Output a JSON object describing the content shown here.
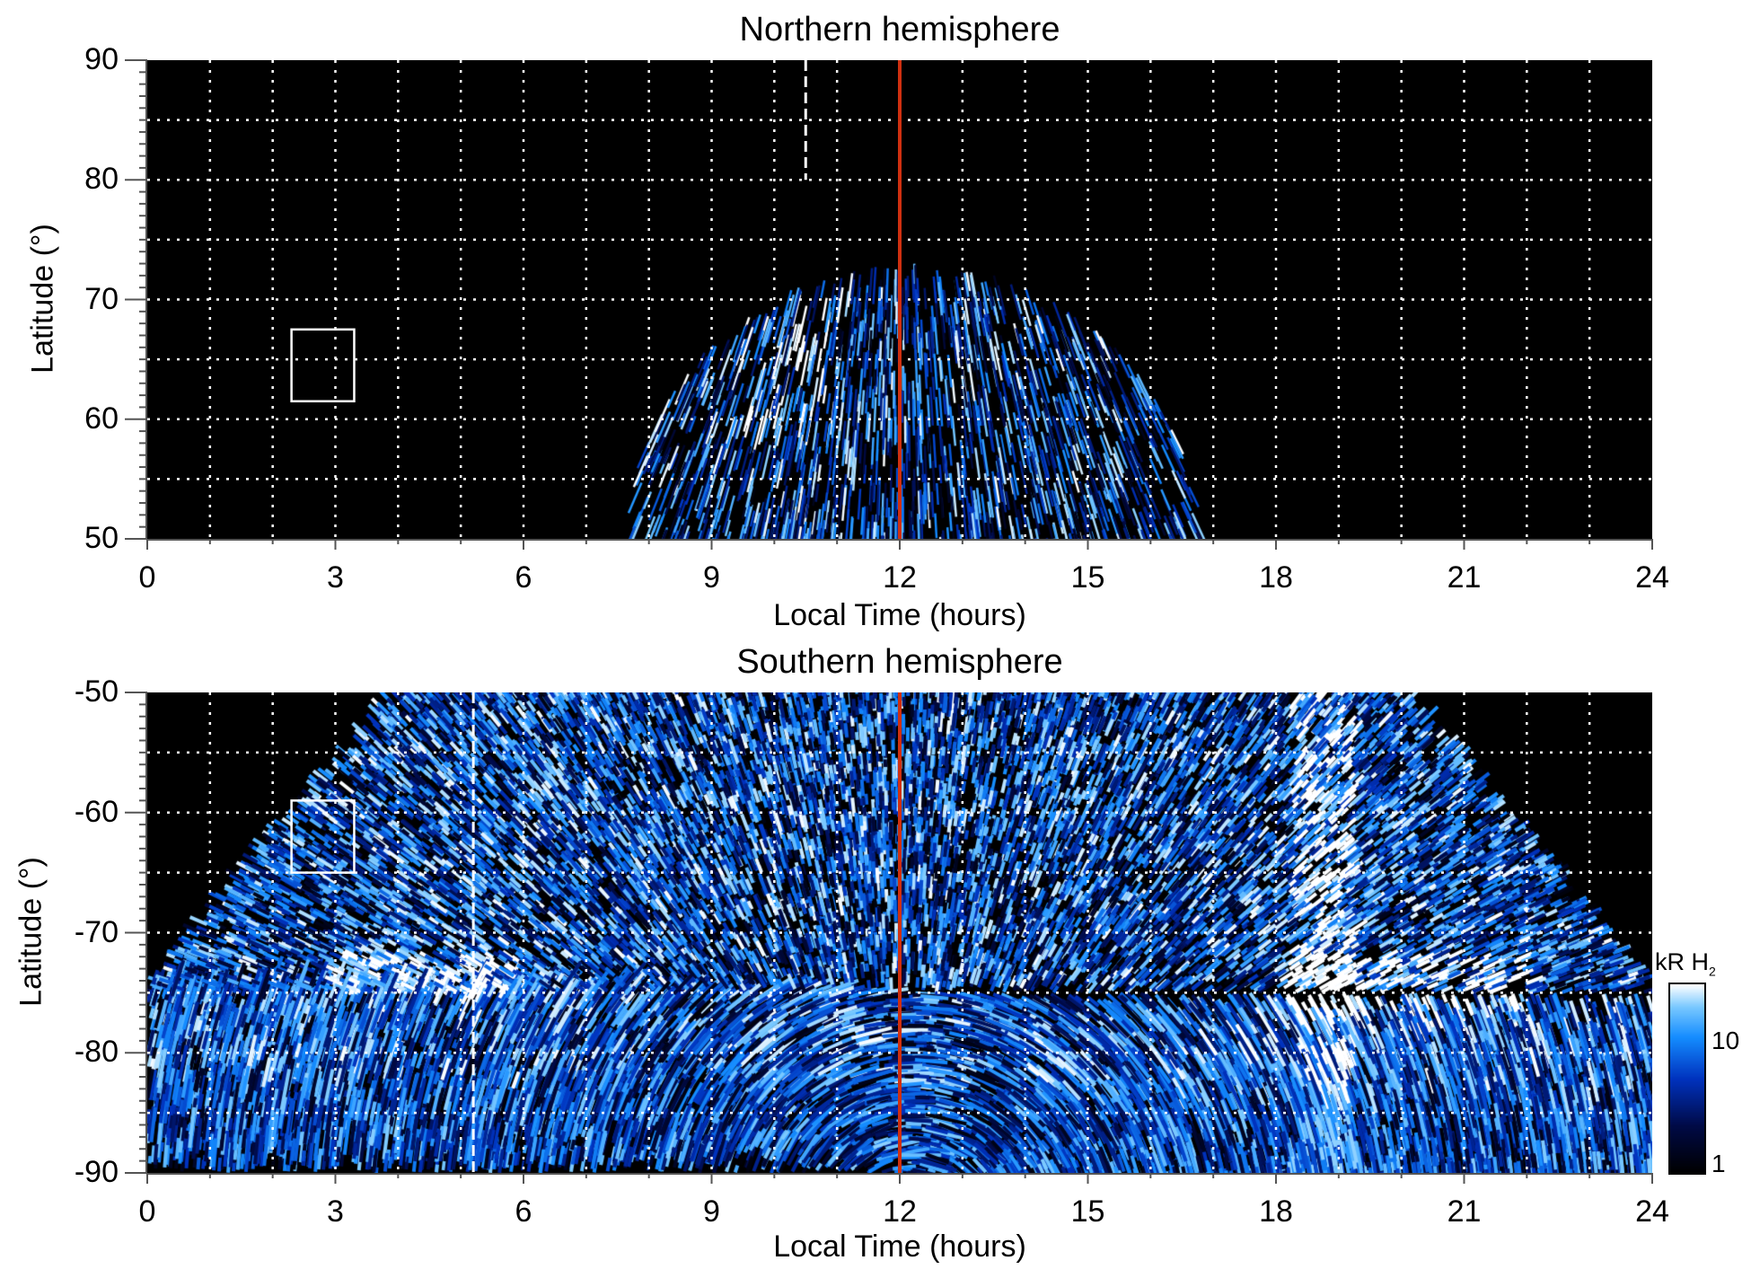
{
  "chart_data": {
    "type": "heatmap",
    "panels": [
      {
        "title": "Northern hemisphere",
        "xlabel": "Local Time (hours)",
        "ylabel": "Latitude (°)",
        "xlim": [
          0,
          24
        ],
        "ylim": [
          50,
          90
        ],
        "xticks": [
          "0",
          "3",
          "6",
          "9",
          "12",
          "15",
          "18",
          "21",
          "24"
        ],
        "yticks": [
          "50",
          "60",
          "70",
          "80",
          "90"
        ],
        "noon_line_lt": 12,
        "dashed_line": {
          "lt": 10.5,
          "lat_range": [
            80,
            90
          ]
        },
        "box": {
          "lt_range": [
            2.3,
            3.3
          ],
          "lat_range": [
            61.5,
            67.5
          ]
        },
        "emission_envelope": {
          "lt_center": 12.2,
          "lt_halfwidth_at_50": 4.5,
          "max_lat": 73
        }
      },
      {
        "title": "Southern hemisphere",
        "xlabel": "Local Time (hours)",
        "ylabel": "Latitude (°)",
        "xlim": [
          0,
          24
        ],
        "ylim": [
          -90,
          -50
        ],
        "xticks": [
          "0",
          "3",
          "6",
          "9",
          "12",
          "15",
          "18",
          "21",
          "24"
        ],
        "yticks": [
          "-90",
          "-80",
          "-70",
          "-60",
          "-50"
        ],
        "noon_line_lt": 12,
        "dashed_line": {
          "lt": 5.2,
          "lat_range": [
            -90,
            -50
          ]
        },
        "box": {
          "lt_range": [
            2.3,
            3.3
          ],
          "lat_range": [
            -65,
            -59
          ]
        },
        "emission_envelope": {
          "lt_center": 12,
          "lt_halfwidth_at_50": 8,
          "full_coverage_lat": -75
        }
      }
    ],
    "colorbar": {
      "title": "kR H",
      "subscript": "2",
      "scale": "log",
      "range": [
        1,
        25
      ],
      "ticks": [
        "1",
        "10"
      ]
    },
    "colors": {
      "noon_line": "#d03010",
      "grid": "#ffffff",
      "background": "#000000"
    }
  }
}
